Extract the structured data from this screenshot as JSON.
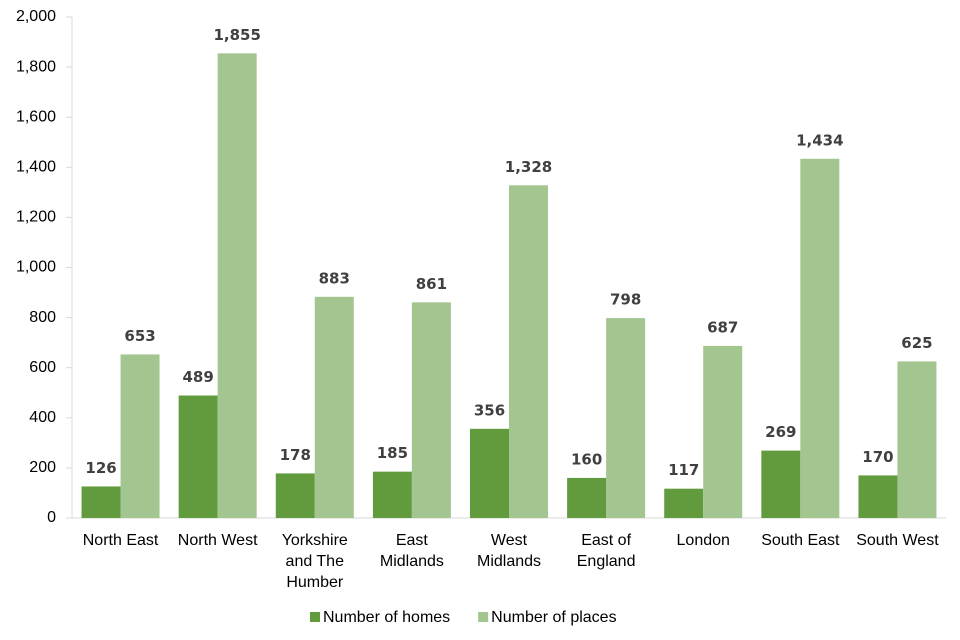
{
  "chart_data": {
    "type": "bar",
    "categories": [
      "North East",
      "North West",
      "Yorkshire and The Humber",
      "East Midlands",
      "West Midlands",
      "East of England",
      "London",
      "South East",
      "South West"
    ],
    "series": [
      {
        "name": "Number of homes",
        "color": "#629b3e",
        "values": [
          126,
          489,
          178,
          185,
          356,
          160,
          117,
          269,
          170
        ],
        "value_labels": [
          "126",
          "489",
          "178",
          "185",
          "356",
          "160",
          "117",
          "269",
          "170"
        ]
      },
      {
        "name": "Number of places",
        "color": "#a3c590",
        "values": [
          653,
          1855,
          883,
          861,
          1328,
          798,
          687,
          1434,
          625
        ],
        "value_labels": [
          "653",
          "1,855",
          "883",
          "861",
          "1,328",
          "798",
          "687",
          "1,434",
          "625"
        ]
      }
    ],
    "ylim": [
      0,
      2000
    ],
    "yticks": [
      0,
      200,
      400,
      600,
      800,
      {
        "value": 1000,
        "label": "1,000"
      },
      {
        "value": 1200,
        "label": "1,200"
      },
      {
        "value": 1400,
        "label": "1,400"
      },
      {
        "value": 1600,
        "label": "1,600"
      },
      {
        "value": 1800,
        "label": "1,800"
      },
      {
        "value": 2000,
        "label": "2,000"
      }
    ],
    "grid": false,
    "legend": "bottom"
  }
}
